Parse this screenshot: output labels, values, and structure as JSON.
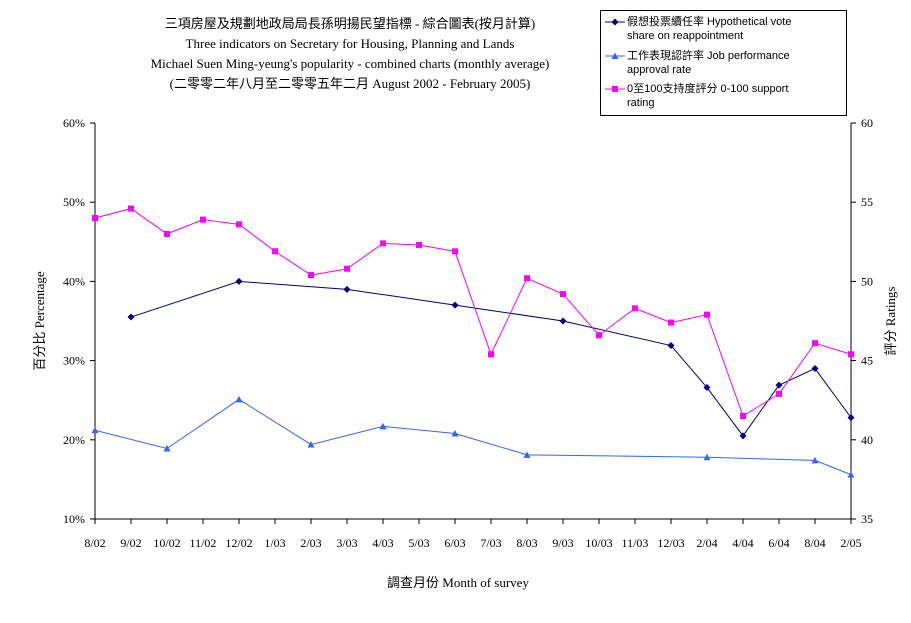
{
  "chart_data": {
    "type": "line",
    "title_lines": [
      "三項房屋及規劃地政局局長孫明揚民望指標 - 綜合圖表(按月計算)",
      "Three indicators on Secretary for Housing, Planning and Lands",
      "Michael Suen Ming-yeung's popularity - combined charts (monthly average)",
      "(二零零二年八月至二零零五年二月 August 2002 - February 2005)"
    ],
    "xlabel": "調查月份 Month of survey",
    "ylabel_left": "百分比 Percentage",
    "ylabel_right": "評分 Ratings",
    "categories": [
      "8/02",
      "9/02",
      "10/02",
      "11/02",
      "12/02",
      "1/03",
      "2/03",
      "3/03",
      "4/03",
      "5/03",
      "6/03",
      "7/03",
      "8/03",
      "9/03",
      "10/03",
      "11/03",
      "12/03",
      "2/04",
      "4/04",
      "6/04",
      "8/04",
      "2/05"
    ],
    "ylim_left": [
      10,
      60
    ],
    "yticks_left": [
      "10%",
      "20%",
      "30%",
      "40%",
      "50%",
      "60%"
    ],
    "yticks_left_values": [
      10,
      20,
      30,
      40,
      50,
      60
    ],
    "ylim_right": [
      35,
      60
    ],
    "yticks_right": [
      "35",
      "40",
      "45",
      "50",
      "55",
      "60"
    ],
    "yticks_right_values": [
      35,
      40,
      45,
      50,
      55,
      60
    ],
    "grid": false,
    "legend_position": "top-right",
    "series": [
      {
        "name_lines": [
          "假想投票續任率 Hypothetical vote",
          "share on reappointment"
        ],
        "axis": "left",
        "color": "#000080",
        "marker": "diamond",
        "values": [
          null,
          35.5,
          null,
          null,
          40.0,
          null,
          null,
          39.0,
          null,
          null,
          37.0,
          null,
          null,
          35.0,
          null,
          null,
          31.9,
          26.6,
          20.5,
          26.9,
          29.0,
          22.8
        ]
      },
      {
        "name_lines": [
          "工作表現認許率 Job performance",
          "approval rate"
        ],
        "axis": "left",
        "color": "#3366ff",
        "marker": "triangle",
        "values": [
          21.2,
          null,
          18.9,
          null,
          25.1,
          null,
          19.4,
          null,
          21.7,
          null,
          20.8,
          null,
          18.1,
          null,
          null,
          null,
          null,
          17.8,
          null,
          null,
          17.4,
          15.6
        ]
      },
      {
        "name_lines": [
          "0至100支持度評分 0-100 support",
          "rating"
        ],
        "axis": "right",
        "color": "#ff00ff",
        "marker": "square",
        "values": [
          54.0,
          54.6,
          53.0,
          53.9,
          53.6,
          51.9,
          50.4,
          50.8,
          52.4,
          52.3,
          51.9,
          45.4,
          50.2,
          49.2,
          46.6,
          48.3,
          47.4,
          47.9,
          41.5,
          42.9,
          46.1,
          45.4
        ]
      }
    ]
  }
}
